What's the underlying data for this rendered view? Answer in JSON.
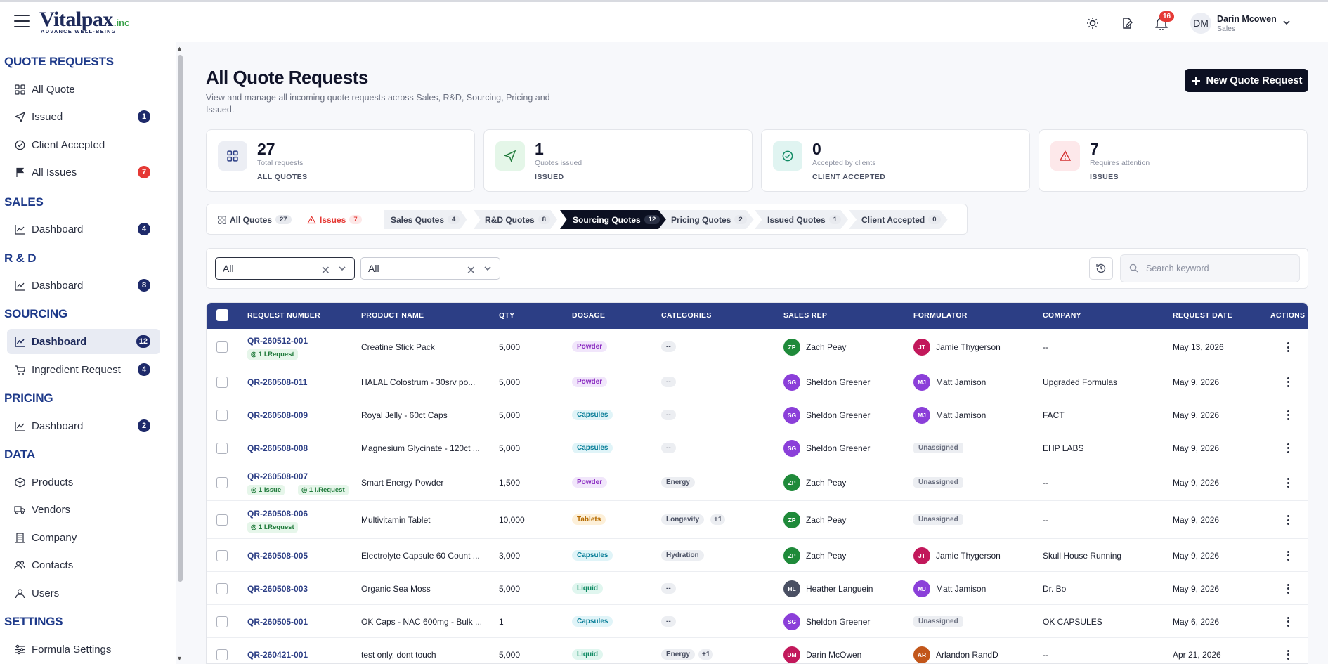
{
  "brand": {
    "name": "Vitalpax",
    "suffix": ".inc",
    "tagline": "ADVANCE WELL-BEING"
  },
  "user": {
    "initials": "DM",
    "name": "Darin Mcowen",
    "role": "Sales",
    "notifications": "16"
  },
  "sidebar": {
    "sections": [
      {
        "title": "QUOTE REQUESTS"
      },
      {
        "title": "SALES"
      },
      {
        "title": "R & D"
      },
      {
        "title": "SOURCING"
      },
      {
        "title": "PRICING"
      },
      {
        "title": "DATA"
      },
      {
        "title": "SETTINGS"
      }
    ],
    "items": [
      {
        "label": "All Quote",
        "icon": "grid-icon"
      },
      {
        "label": "Issued",
        "icon": "send-icon",
        "count": "1"
      },
      {
        "label": "Client Accepted",
        "icon": "check-circle-icon"
      },
      {
        "label": "All Issues",
        "icon": "flag-icon",
        "count": "7"
      },
      {
        "label": "Dashboard",
        "icon": "chart-line-icon",
        "count": "4"
      },
      {
        "label": "Dashboard",
        "icon": "chart-line-icon",
        "count": "8"
      },
      {
        "label": "Dashboard",
        "icon": "chart-line-icon",
        "count": "12"
      },
      {
        "label": "Ingredient Request",
        "icon": "cart-icon",
        "count": "4"
      },
      {
        "label": "Dashboard",
        "icon": "chart-line-icon",
        "count": "2"
      },
      {
        "label": "Products",
        "icon": "box-icon"
      },
      {
        "label": "Vendors",
        "icon": "truck-icon"
      },
      {
        "label": "Company",
        "icon": "building-icon"
      },
      {
        "label": "Contacts",
        "icon": "users-icon"
      },
      {
        "label": "Users",
        "icon": "user-icon"
      },
      {
        "label": "Formula Settings",
        "icon": "settings-icon"
      }
    ]
  },
  "page": {
    "title": "All Quote Requests",
    "subtitle": "View and manage all incoming quote requests across Sales, R&D, Sourcing, Pricing and Issued.",
    "new_button": "New Quote Request"
  },
  "stats": [
    {
      "value": "27",
      "label": "Total requests",
      "caption": "ALL QUOTES"
    },
    {
      "value": "1",
      "label": "Quotes issued",
      "caption": "ISSUED"
    },
    {
      "value": "0",
      "label": "Accepted by clients",
      "caption": "CLIENT ACCEPTED"
    },
    {
      "value": "7",
      "label": "Requires attention",
      "caption": "ISSUES"
    }
  ],
  "tabs": [
    {
      "label": "All Quotes",
      "count": "27"
    },
    {
      "label": "Issues",
      "count": "7"
    },
    {
      "label": "Sales Quotes",
      "count": "4"
    },
    {
      "label": "R&D Quotes",
      "count": "8"
    },
    {
      "label": "Sourcing Quotes",
      "count": "12"
    },
    {
      "label": "Pricing Quotes",
      "count": "2"
    },
    {
      "label": "Issued Quotes",
      "count": "1"
    },
    {
      "label": "Client Accepted",
      "count": "0"
    }
  ],
  "filters": {
    "filter1": "All",
    "filter2": "All",
    "search_placeholder": "Search keyword"
  },
  "table": {
    "headers": [
      "REQUEST NUMBER",
      "PRODUCT NAME",
      "QTY",
      "DOSAGE",
      "CATEGORIES",
      "SALES REP",
      "FORMULATOR",
      "COMPANY",
      "REQUEST DATE",
      "ACTIONS"
    ],
    "rows": [
      {
        "req": "QR-260512-001",
        "chips": [
          "1 I.Request"
        ],
        "product": "Creatine Stick Pack",
        "qty": "5,000",
        "dosage": "Powder",
        "category": "--",
        "extra": "",
        "rep_initials": "ZP",
        "rep": "Zach Peay",
        "form_initials": "JT",
        "formulator": "Jamie Thygerson",
        "company": "--",
        "date": "May 13, 2026"
      },
      {
        "req": "QR-260508-011",
        "chips": [],
        "product": "HALAL Colostrum - 30srv po...",
        "qty": "5,000",
        "dosage": "Powder",
        "category": "--",
        "extra": "",
        "rep_initials": "SG",
        "rep": "Sheldon Greener",
        "form_initials": "MJ",
        "formulator": "Matt Jamison",
        "company": "Upgraded Formulas",
        "date": "May 9, 2026"
      },
      {
        "req": "QR-260508-009",
        "chips": [],
        "product": "Royal Jelly - 60ct Caps",
        "qty": "5,000",
        "dosage": "Capsules",
        "category": "--",
        "extra": "",
        "rep_initials": "SG",
        "rep": "Sheldon Greener",
        "form_initials": "MJ",
        "formulator": "Matt Jamison",
        "company": "FACT",
        "date": "May 9, 2026"
      },
      {
        "req": "QR-260508-008",
        "chips": [],
        "product": "Magnesium Glycinate - 120ct ...",
        "qty": "5,000",
        "dosage": "Capsules",
        "category": "--",
        "extra": "",
        "rep_initials": "SG",
        "rep": "Sheldon Greener",
        "form_initials": "",
        "formulator": "Unassigned",
        "company": "EHP LABS",
        "date": "May 9, 2026"
      },
      {
        "req": "QR-260508-007",
        "chips": [
          "1 Issue",
          "1 I.Request"
        ],
        "product": "Smart Energy Powder",
        "qty": "1,500",
        "dosage": "Powder",
        "category": "Energy",
        "extra": "",
        "rep_initials": "ZP",
        "rep": "Zach Peay",
        "form_initials": "",
        "formulator": "Unassigned",
        "company": "--",
        "date": "May 9, 2026"
      },
      {
        "req": "QR-260508-006",
        "chips": [
          "1 I.Request"
        ],
        "product": "Multivitamin Tablet",
        "qty": "10,000",
        "dosage": "Tablets",
        "category": "Longevity",
        "extra": "+1",
        "rep_initials": "ZP",
        "rep": "Zach Peay",
        "form_initials": "",
        "formulator": "Unassigned",
        "company": "--",
        "date": "May 9, 2026"
      },
      {
        "req": "QR-260508-005",
        "chips": [],
        "product": "Electrolyte Capsule 60 Count ...",
        "qty": "3,000",
        "dosage": "Capsules",
        "category": "Hydration",
        "extra": "",
        "rep_initials": "ZP",
        "rep": "Zach Peay",
        "form_initials": "JT",
        "formulator": "Jamie Thygerson",
        "company": "Skull House Running",
        "date": "May 9, 2026"
      },
      {
        "req": "QR-260508-003",
        "chips": [],
        "product": "Organic Sea Moss",
        "qty": "5,000",
        "dosage": "Liquid",
        "category": "--",
        "extra": "",
        "rep_initials": "HL",
        "rep": "Heather Languein",
        "form_initials": "MJ",
        "formulator": "Matt Jamison",
        "company": "Dr. Bo",
        "date": "May 9, 2026"
      },
      {
        "req": "QR-260505-001",
        "chips": [],
        "product": "OK Caps - NAC 600mg - Bulk ...",
        "qty": "1",
        "dosage": "Capsules",
        "category": "--",
        "extra": "",
        "rep_initials": "SG",
        "rep": "Sheldon Greener",
        "form_initials": "",
        "formulator": "Unassigned",
        "company": "OK CAPSULES",
        "date": "May 6, 2026"
      },
      {
        "req": "QR-260421-001",
        "chips": [],
        "product": "test only, dont touch",
        "qty": "5,000",
        "dosage": "Liquid",
        "category": "Energy",
        "extra": "+1",
        "rep_initials": "DM",
        "rep": "Darin McOwen",
        "form_initials": "AR",
        "formulator": "Arlandon RandD",
        "company": "--",
        "date": "Apr 21, 2026"
      }
    ]
  },
  "colors": {
    "primary": "#2c3e85",
    "dark": "#0c1022",
    "danger": "#e53935",
    "success": "#1f7a3a"
  }
}
